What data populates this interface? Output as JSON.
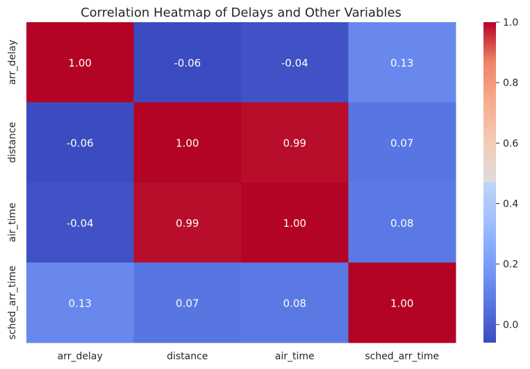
{
  "chart_data": {
    "type": "heatmap",
    "title": "Correlation Heatmap of Delays and Other Variables",
    "x_categories": [
      "arr_delay",
      "distance",
      "air_time",
      "sched_arr_time"
    ],
    "y_categories": [
      "arr_delay",
      "distance",
      "air_time",
      "sched_arr_time"
    ],
    "values": [
      [
        1.0,
        -0.06,
        -0.04,
        0.13
      ],
      [
        -0.06,
        1.0,
        0.99,
        0.07
      ],
      [
        -0.04,
        0.99,
        1.0,
        0.08
      ],
      [
        0.13,
        0.07,
        0.08,
        1.0
      ]
    ],
    "value_format": "0.00",
    "colormap": "coolwarm",
    "color_range": [
      -0.06,
      1.0
    ],
    "colorbar": {
      "ticks": [
        0.0,
        0.2,
        0.4,
        0.6,
        0.8,
        1.0
      ],
      "tick_labels": [
        "0.0",
        "0.2",
        "0.4",
        "0.6",
        "0.8",
        "1.0"
      ],
      "position": "right"
    },
    "grid": false
  }
}
